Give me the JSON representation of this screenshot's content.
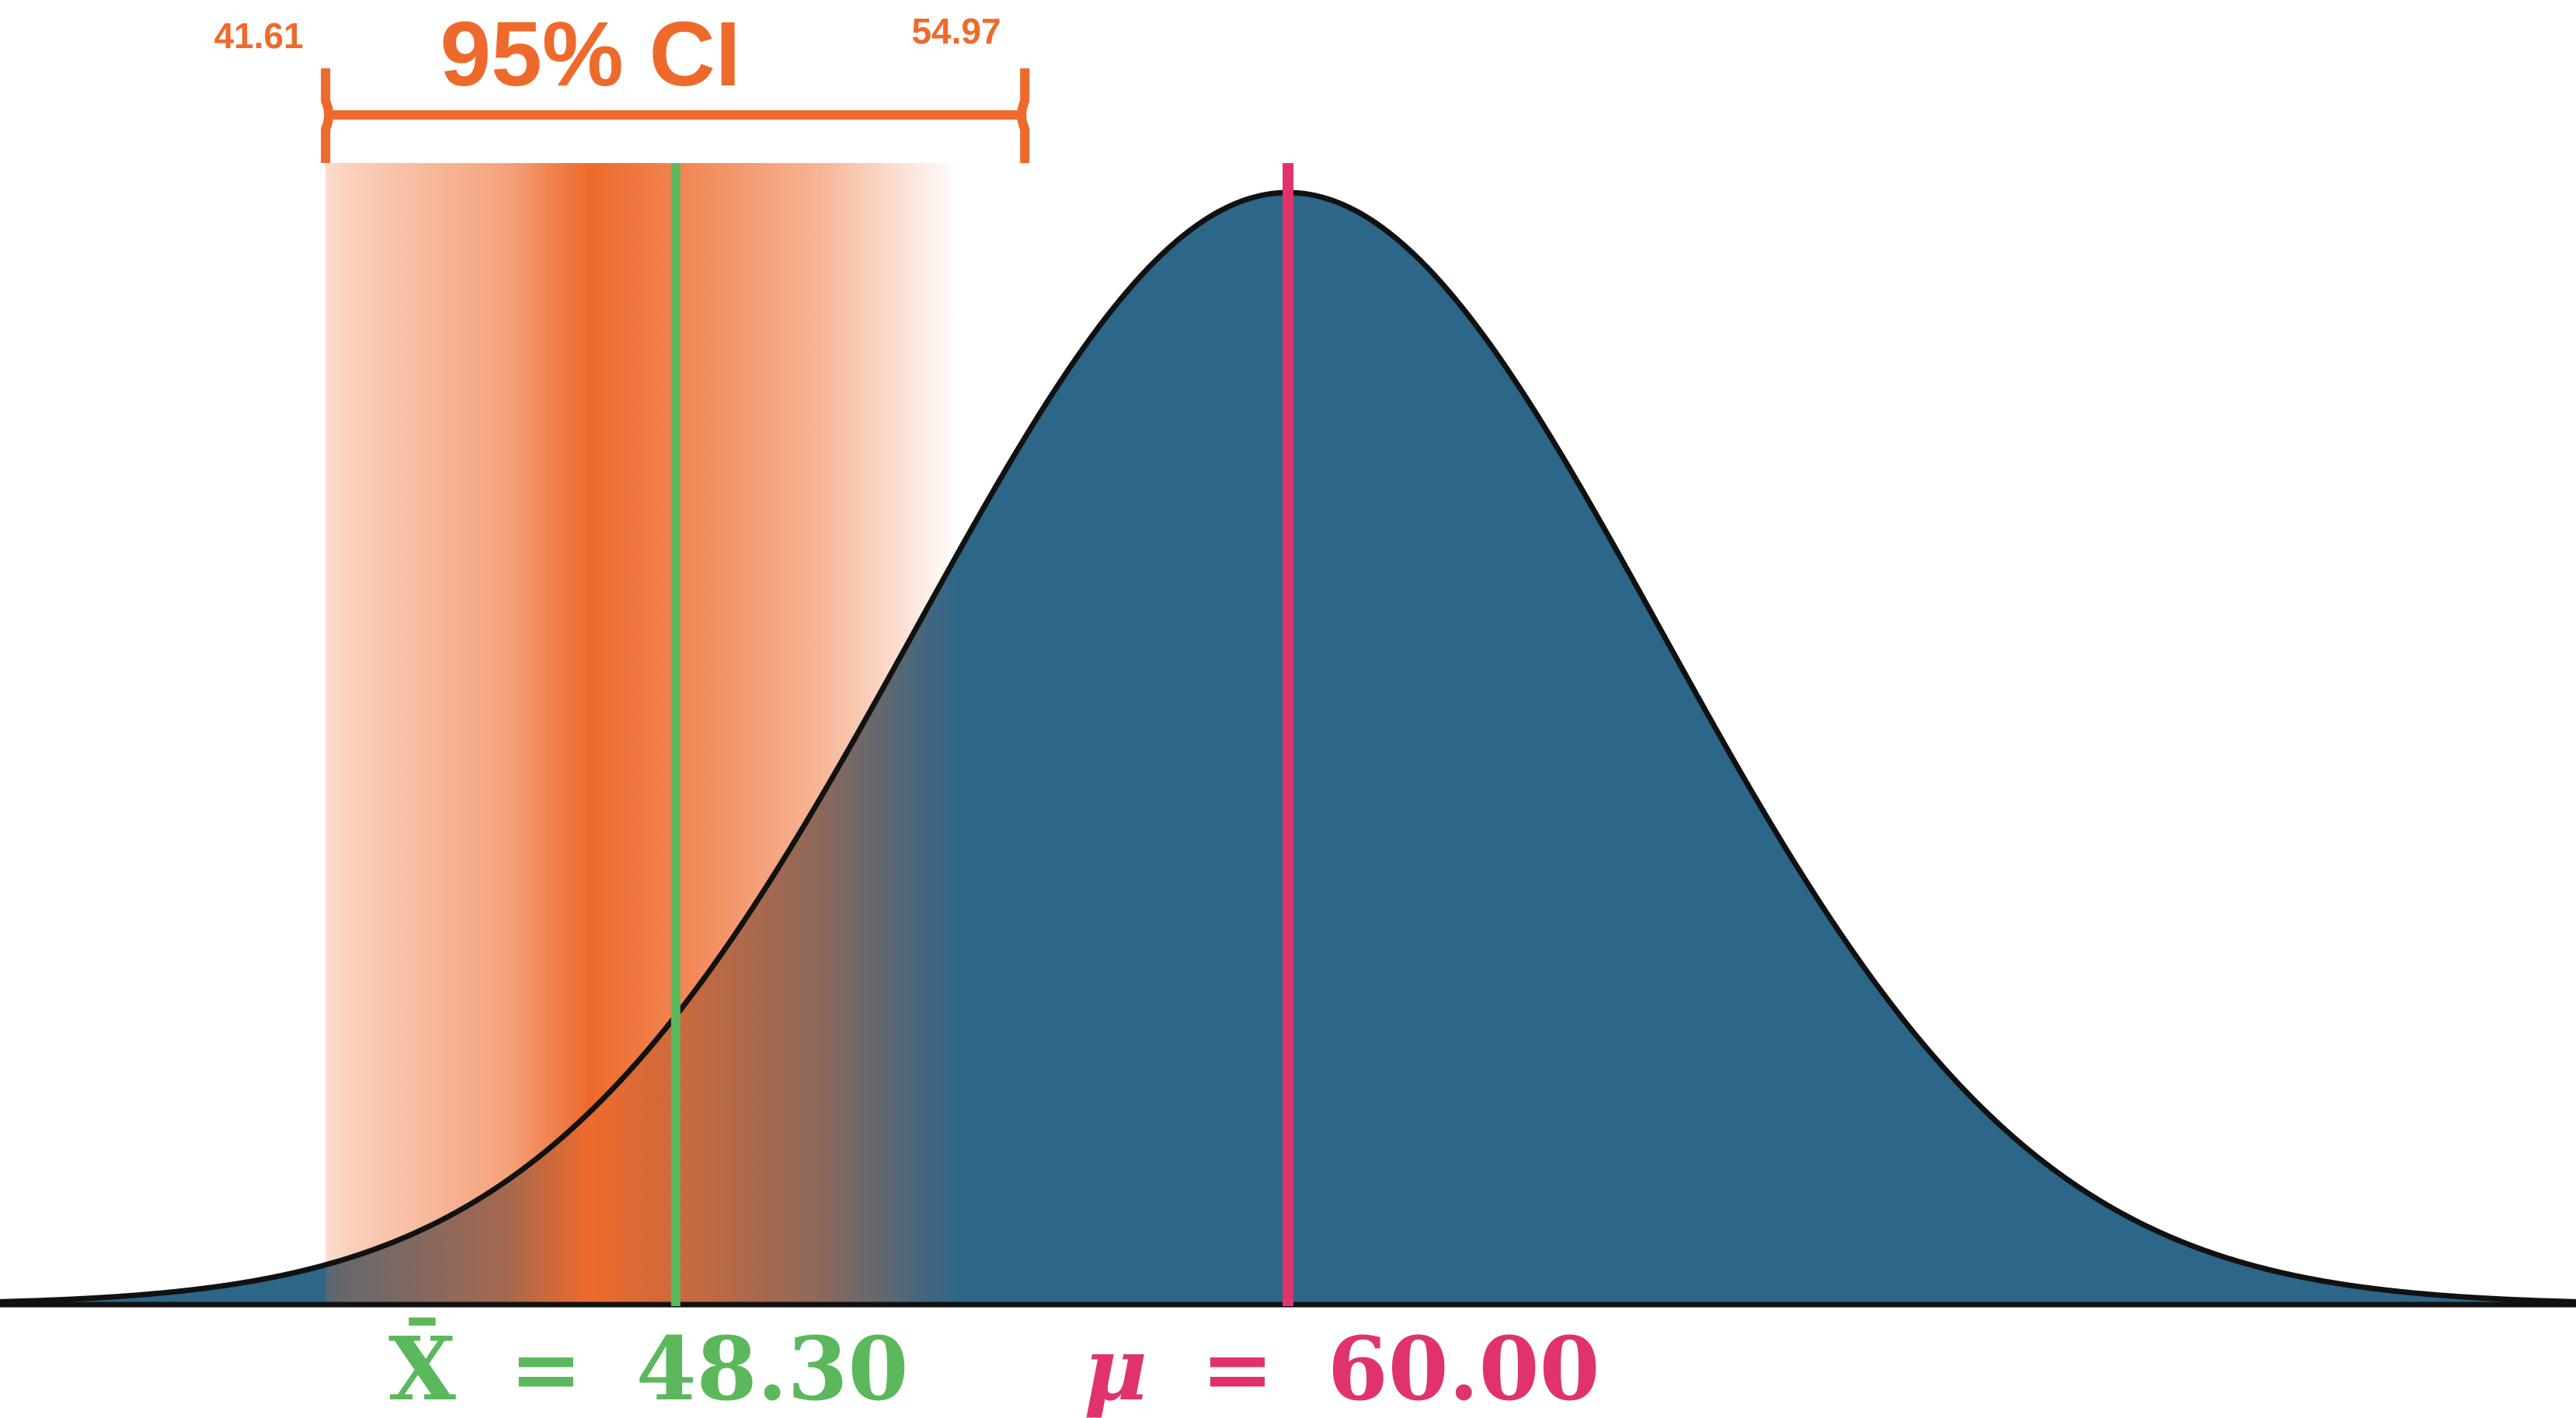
{
  "ci": {
    "title": "95% CI",
    "lower_label": "41.61",
    "upper_label": "54.97",
    "lower": 41.61,
    "upper": 54.97
  },
  "sample_mean": {
    "symbol": "X̄",
    "equals": "=",
    "value_label": "48.30",
    "value": 48.3
  },
  "population_mean": {
    "symbol": "μ",
    "equals": "=",
    "value_label": "60.00",
    "value": 60.0
  },
  "colors": {
    "ci": "#ee6a2c",
    "curve_fill": "#2c6689",
    "curve_stroke": "#111111",
    "sample_mean": "#5cb85c",
    "population_mean": "#e0336b"
  }
}
